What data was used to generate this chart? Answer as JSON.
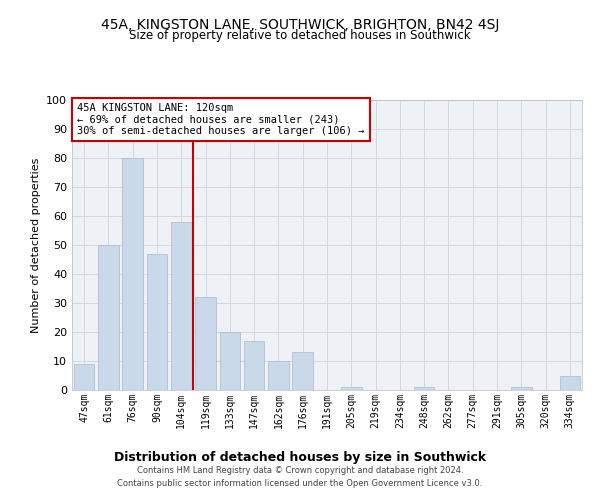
{
  "title": "45A, KINGSTON LANE, SOUTHWICK, BRIGHTON, BN42 4SJ",
  "subtitle": "Size of property relative to detached houses in Southwick",
  "xlabel": "Distribution of detached houses by size in Southwick",
  "ylabel": "Number of detached properties",
  "bar_color": "#c9d9ea",
  "bar_edge_color": "#aabbcc",
  "background_color": "#eef2f7",
  "grid_color": "#d0d8e0",
  "categories": [
    "47sqm",
    "61sqm",
    "76sqm",
    "90sqm",
    "104sqm",
    "119sqm",
    "133sqm",
    "147sqm",
    "162sqm",
    "176sqm",
    "191sqm",
    "205sqm",
    "219sqm",
    "234sqm",
    "248sqm",
    "262sqm",
    "277sqm",
    "291sqm",
    "305sqm",
    "320sqm",
    "334sqm"
  ],
  "values": [
    9,
    50,
    80,
    47,
    58,
    32,
    20,
    17,
    10,
    13,
    0,
    1,
    0,
    0,
    1,
    0,
    0,
    0,
    1,
    0,
    5
  ],
  "marker_index": 5,
  "marker_color": "#cc0000",
  "annotation_title": "45A KINGSTON LANE: 120sqm",
  "annotation_line1": "← 69% of detached houses are smaller (243)",
  "annotation_line2": "30% of semi-detached houses are larger (106) →",
  "footer_line1": "Contains HM Land Registry data © Crown copyright and database right 2024.",
  "footer_line2": "Contains public sector information licensed under the Open Government Licence v3.0.",
  "ylim": [
    0,
    100
  ],
  "yticks": [
    0,
    10,
    20,
    30,
    40,
    50,
    60,
    70,
    80,
    90,
    100
  ]
}
